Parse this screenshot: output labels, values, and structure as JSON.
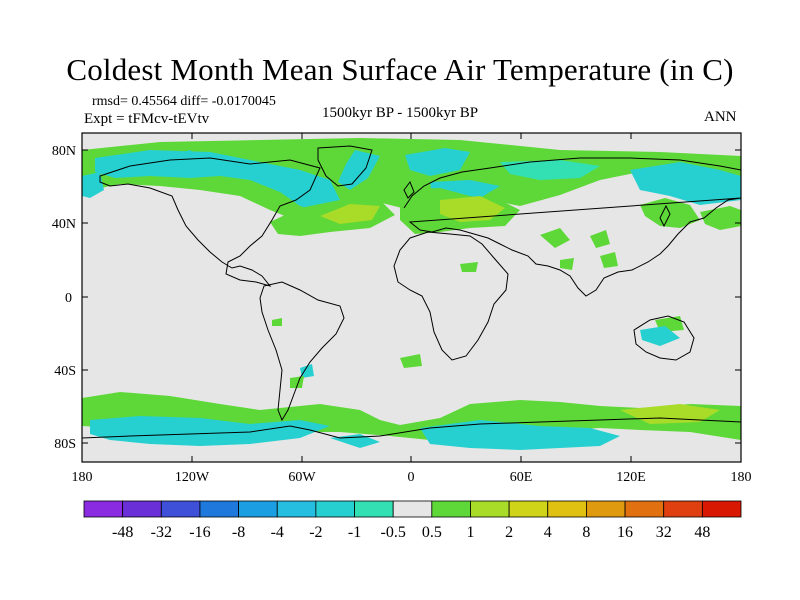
{
  "title": "Coldest Month Mean Surface Air Temperature (in C)",
  "stats": "rmsd= 0.45564 diff= -0.0170045",
  "experiment": "Expt = tFMcv-tEVtv",
  "period": "1500kyr BP - 1500kyr BP",
  "season": "ANN",
  "lat_ticks": [
    "80N",
    "40N",
    "0",
    "40S",
    "80S"
  ],
  "lon_ticks": [
    "180",
    "120W",
    "60W",
    "0",
    "60E",
    "120E",
    "180"
  ],
  "colorbar": {
    "labels": [
      "-48",
      "-32",
      "-16",
      "-8",
      "-4",
      "-2",
      "-1",
      "-0.5",
      "0.5",
      "1",
      "2",
      "4",
      "8",
      "16",
      "32",
      "48"
    ],
    "colors": [
      "#8a2be2",
      "#6a2fd6",
      "#3e4fd8",
      "#1f78dc",
      "#1c9fe2",
      "#25bde0",
      "#27d0d0",
      "#33e0b4",
      "#e6e6e6",
      "#5ed838",
      "#a8dc28",
      "#cfd418",
      "#e0c010",
      "#e09a10",
      "#e07010",
      "#e04010",
      "#d81800"
    ]
  },
  "chart_data": {
    "type": "heatmap",
    "title": "Coldest Month Mean Surface Air Temperature (in C)",
    "variable": "temperature difference",
    "units": "C",
    "lon_range": [
      -180,
      180
    ],
    "lat_range": [
      -90,
      90
    ],
    "levels": [
      -48,
      -32,
      -16,
      -8,
      -4,
      -2,
      -1,
      -0.5,
      0.5,
      1,
      2,
      4,
      8,
      16,
      32,
      48
    ],
    "rmsd": 0.45564,
    "diff": -0.0170045
  }
}
